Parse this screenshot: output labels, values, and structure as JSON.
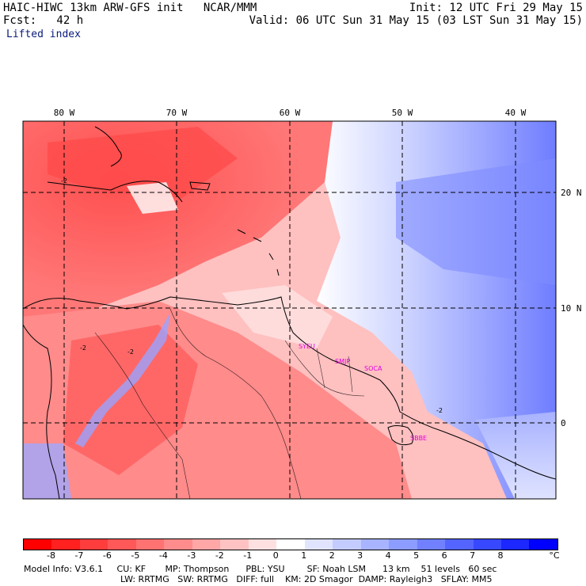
{
  "header": {
    "line1_left": "HAIC-HIWC 13km ARW-GFS init   NCAR/MMM",
    "line2_left": "Fcst:   42 h",
    "field": "Lifted index",
    "line1_right": "Init: 12 UTC Fri 29 May 15",
    "line2_right": "Valid: 06 UTC Sun 31 May 15 (03 LST Sun 31 May 15)"
  },
  "map": {
    "longitude_labels": [
      "80 W",
      "70 W",
      "60 W",
      "50 W",
      "40 W"
    ],
    "latitude_labels": [
      "20 N",
      "10 N",
      "0"
    ],
    "stations": [
      "SYEU",
      "SMJP",
      "SOCA",
      "SBBE"
    ],
    "contour_labels": [
      "-2",
      "-2",
      "-2",
      "-2"
    ]
  },
  "colorbar": {
    "labels": [
      "-8",
      "-7",
      "-6",
      "-5",
      "-4",
      "-3",
      "-2",
      "-1",
      "0",
      "1",
      "2",
      "3",
      "4",
      "5",
      "6",
      "7",
      "8"
    ],
    "unit": "°C",
    "colors": [
      "#ff0000",
      "#ff2020",
      "#ff3d3d",
      "#ff5858",
      "#ff7272",
      "#ff8c8c",
      "#ffa6a6",
      "#ffc2c2",
      "#ffe0e0",
      "#ffffff",
      "#e0e4ff",
      "#c4ccff",
      "#a8b4ff",
      "#8c9cff",
      "#7080ff",
      "#5464ff",
      "#3848ff",
      "#1c28ff",
      "#0000ff"
    ]
  },
  "footer": {
    "line1": "Model Info: V3.6.1     CU: KF       MP: Thompson      PBL: YSU        SF: Noah LSM      13 km    51 levels   60 sec",
    "line2": "LW: RRTMG   SW: RRTMG   DIFF: full    KM: 2D Smagor  DAMP: Rayleigh3   SFLAY: MM5"
  }
}
